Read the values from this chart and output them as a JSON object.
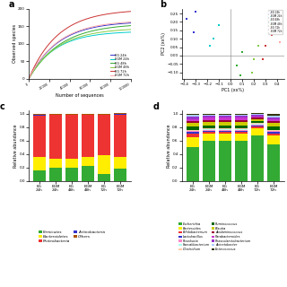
{
  "panel_a": {
    "xlabel": "Number of sequences",
    "ylabel": "Observed species",
    "xlim": [
      0,
      100000
    ],
    "ylim": [
      0,
      200
    ],
    "lines": [
      {
        "label": "EG 24h",
        "color": "#3333cc"
      },
      {
        "label": "EGM 24h",
        "color": "#00cccc"
      },
      {
        "label": "EG 48h",
        "color": "#33aa33"
      },
      {
        "label": "EGM 48h",
        "color": "#88cc44"
      },
      {
        "label": "EG 72h",
        "color": "#cc3333"
      },
      {
        "label": "EGM 72h",
        "color": "#ffaaaa"
      }
    ],
    "curves": [
      [
        125,
        130,
        138,
        145,
        150,
        154,
        157,
        160,
        162,
        164
      ],
      [
        100,
        108,
        115,
        120,
        124,
        127,
        130,
        132,
        134,
        135
      ],
      [
        125,
        133,
        138,
        143,
        146,
        149,
        151,
        153,
        155,
        157
      ],
      [
        115,
        122,
        128,
        132,
        136,
        138,
        140,
        142,
        143,
        144
      ],
      [
        130,
        150,
        165,
        175,
        182,
        187,
        191,
        194,
        196,
        197
      ],
      [
        120,
        135,
        143,
        150,
        155,
        158,
        161,
        163,
        165,
        166
      ]
    ]
  },
  "panel_b": {
    "xlabel": "PC1 (xx%)",
    "ylabel": "PC2 (xx%)",
    "groups": [
      {
        "label": "EG 24h",
        "color": "#3333cc",
        "points": [
          [
            -0.38,
            0.22
          ],
          [
            -0.32,
            0.14
          ],
          [
            -0.3,
            0.26
          ]
        ]
      },
      {
        "label": "EGM 24h",
        "color": "#00cccc",
        "points": [
          [
            -0.15,
            0.1
          ],
          [
            -0.1,
            0.18
          ],
          [
            -0.18,
            0.06
          ]
        ]
      },
      {
        "label": "EG 48h",
        "color": "#33aa33",
        "points": [
          [
            0.05,
            -0.06
          ],
          [
            0.1,
            0.02
          ],
          [
            0.08,
            -0.12
          ]
        ]
      },
      {
        "label": "EGM 48h",
        "color": "#88cc44",
        "points": [
          [
            0.2,
            -0.02
          ],
          [
            0.24,
            0.06
          ],
          [
            0.18,
            -0.1
          ]
        ]
      },
      {
        "label": "EG 72h",
        "color": "#cc3333",
        "points": [
          [
            0.3,
            0.06
          ],
          [
            0.35,
            0.12
          ],
          [
            0.28,
            -0.02
          ]
        ]
      },
      {
        "label": "EGM 72h",
        "color": "#ffaaaa",
        "points": [
          [
            0.4,
            0.16
          ],
          [
            0.42,
            0.08
          ],
          [
            0.38,
            0.22
          ]
        ]
      }
    ]
  },
  "panel_c": {
    "ylabel": "Relative abundance",
    "categories": [
      "EG 24h",
      "EGM 24h",
      "EG 48h",
      "EGM 48h",
      "EG 72h",
      "EGM 72h"
    ],
    "stacks": [
      {
        "name": "Firmicutes",
        "color": "#33aa33",
        "values": [
          0.15,
          0.2,
          0.19,
          0.22,
          0.1,
          0.18
        ]
      },
      {
        "name": "Bacteroidetes",
        "color": "#ffee00",
        "values": [
          0.2,
          0.13,
          0.14,
          0.13,
          0.28,
          0.18
        ]
      },
      {
        "name": "Proteobacteria",
        "color": "#ee3333",
        "values": [
          0.62,
          0.65,
          0.65,
          0.63,
          0.6,
          0.63
        ]
      },
      {
        "name": "Actinobacteria",
        "color": "#3333cc",
        "values": [
          0.02,
          0.01,
          0.01,
          0.01,
          0.01,
          0.01
        ]
      },
      {
        "name": "Others",
        "color": "#aa5500",
        "values": [
          0.01,
          0.01,
          0.01,
          0.01,
          0.01,
          0.01
        ]
      }
    ],
    "legend_ncol": 2,
    "legend_items": [
      [
        "Firmicutes",
        "#33aa33"
      ],
      [
        "Proteobacteria",
        "#ee3333"
      ],
      [
        "Bacteroidetes",
        "#ffee00"
      ],
      [
        "Actinobacteria",
        "#3333cc"
      ],
      [
        "",
        "none"
      ],
      [
        "Others",
        "#aa5500"
      ]
    ]
  },
  "panel_d": {
    "ylabel": "Relative abundance",
    "categories": [
      "EG 24h",
      "EGM 24h",
      "EG 48h",
      "EGM 48h",
      "EG 72h",
      "EGM 72h"
    ],
    "stacks": [
      {
        "name": "Escherichia",
        "color": "#33aa33",
        "values": [
          0.5,
          0.6,
          0.6,
          0.6,
          0.68,
          0.55
        ]
      },
      {
        "name": "Bacteroides",
        "color": "#ffee00",
        "values": [
          0.15,
          0.1,
          0.1,
          0.1,
          0.1,
          0.13
        ]
      },
      {
        "name": "Bifidobacterium",
        "color": "#ee3333",
        "values": [
          0.05,
          0.03,
          0.03,
          0.03,
          0.03,
          0.03
        ]
      },
      {
        "name": "Lactobacillus",
        "color": "#3333cc",
        "values": [
          0.03,
          0.02,
          0.02,
          0.02,
          0.02,
          0.02
        ]
      },
      {
        "name": "Roseburia",
        "color": "#ff88cc",
        "values": [
          0.01,
          0.01,
          0.01,
          0.01,
          0.01,
          0.01
        ]
      },
      {
        "name": "Faecalibacterium",
        "color": "#aaffee",
        "values": [
          0.01,
          0.01,
          0.01,
          0.01,
          0.01,
          0.01
        ]
      },
      {
        "name": "Clostridium",
        "color": "#ffccaa",
        "values": [
          0.01,
          0.01,
          0.01,
          0.01,
          0.01,
          0.01
        ]
      },
      {
        "name": "Ruminococcus",
        "color": "#006600",
        "values": [
          0.05,
          0.05,
          0.05,
          0.05,
          0.03,
          0.05
        ]
      },
      {
        "name": "Blautia",
        "color": "#cccc00",
        "values": [
          0.05,
          0.05,
          0.05,
          0.05,
          0.03,
          0.05
        ]
      },
      {
        "name": "Acidaminococcus",
        "color": "#990033",
        "values": [
          0.03,
          0.03,
          0.03,
          0.03,
          0.02,
          0.03
        ]
      },
      {
        "name": "Parabacteroides",
        "color": "#cc33cc",
        "values": [
          0.03,
          0.03,
          0.03,
          0.03,
          0.02,
          0.03
        ]
      },
      {
        "name": "Phascolarctobacterium",
        "color": "#9933cc",
        "values": [
          0.04,
          0.03,
          0.03,
          0.03,
          0.02,
          0.03
        ]
      },
      {
        "name": "Acinetobacter",
        "color": "#aaccff",
        "values": [
          0.02,
          0.02,
          0.02,
          0.02,
          0.02,
          0.02
        ]
      },
      {
        "name": "Enterococcus",
        "color": "#333300",
        "values": [
          0.02,
          0.01,
          0.01,
          0.01,
          0.01,
          0.03
        ]
      }
    ]
  },
  "fig_width": 3.2,
  "fig_height": 3.2,
  "dpi": 100
}
